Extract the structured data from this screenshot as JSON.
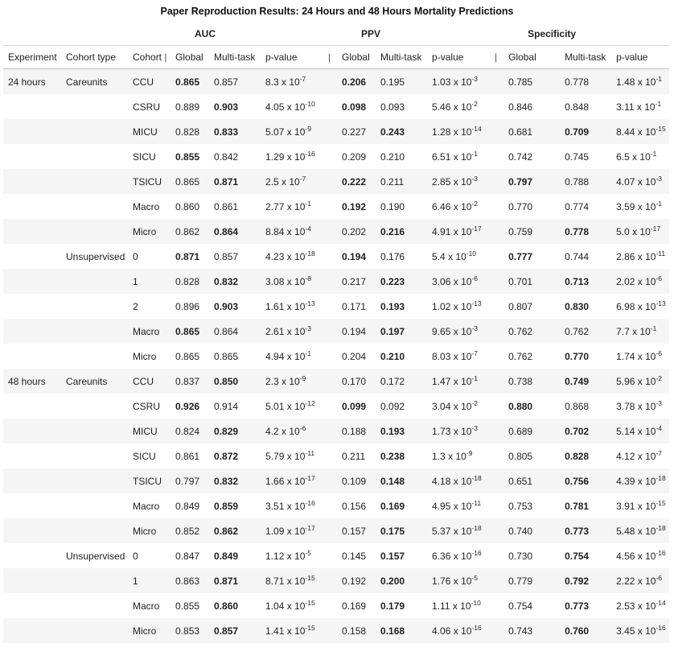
{
  "caption": "Paper Reproduction Results: 24 Hours and 48 Hours Mortality Predictions",
  "groups": [
    "AUC",
    "PPV",
    "Specificity"
  ],
  "columns": {
    "experiment": "Experiment",
    "cohort_type": "Cohort type",
    "cohort": "Cohort",
    "sep": "|",
    "global": "Global",
    "multitask": "Multi-task",
    "pvalue": "p-value"
  },
  "rows": [
    {
      "exp": "24 hours",
      "ctype": "Careunits",
      "cohort": "CCU",
      "auc": {
        "g": "0.865",
        "m": "0.857",
        "p": [
          "8.3",
          "-7"
        ],
        "best": "g"
      },
      "ppv": {
        "g": "0.206",
        "m": "0.195",
        "p": [
          "1.03",
          "-3"
        ],
        "best": "g"
      },
      "spec": {
        "g": "0.785",
        "m": "0.778",
        "p": [
          "1.48",
          "-1"
        ],
        "best": ""
      }
    },
    {
      "exp": "",
      "ctype": "",
      "cohort": "CSRU",
      "auc": {
        "g": "0.889",
        "m": "0.903",
        "p": [
          "4.05",
          "-10"
        ],
        "best": "m"
      },
      "ppv": {
        "g": "0.098",
        "m": "0.093",
        "p": [
          "5.46",
          "-2"
        ],
        "best": "g"
      },
      "spec": {
        "g": "0.846",
        "m": "0.848",
        "p": [
          "3.11",
          "-1"
        ],
        "best": ""
      }
    },
    {
      "exp": "",
      "ctype": "",
      "cohort": "MICU",
      "auc": {
        "g": "0.828",
        "m": "0.833",
        "p": [
          "5.07",
          "-9"
        ],
        "best": "m"
      },
      "ppv": {
        "g": "0.227",
        "m": "0.243",
        "p": [
          "1.28",
          "-14"
        ],
        "best": "m"
      },
      "spec": {
        "g": "0.681",
        "m": "0.709",
        "p": [
          "8.44",
          "-15"
        ],
        "best": "m"
      }
    },
    {
      "exp": "",
      "ctype": "",
      "cohort": "SICU",
      "auc": {
        "g": "0.855",
        "m": "0.842",
        "p": [
          "1.29",
          "-16"
        ],
        "best": "g"
      },
      "ppv": {
        "g": "0.209",
        "m": "0.210",
        "p": [
          "6.51",
          "-1"
        ],
        "best": ""
      },
      "spec": {
        "g": "0.742",
        "m": "0.745",
        "p": [
          "6.5",
          "-1"
        ],
        "best": ""
      }
    },
    {
      "exp": "",
      "ctype": "",
      "cohort": "TSICU",
      "auc": {
        "g": "0.865",
        "m": "0.871",
        "p": [
          "2.5",
          "-7"
        ],
        "best": "m"
      },
      "ppv": {
        "g": "0.222",
        "m": "0.211",
        "p": [
          "2.85",
          "-3"
        ],
        "best": "g"
      },
      "spec": {
        "g": "0.797",
        "m": "0.788",
        "p": [
          "4.07",
          "-3"
        ],
        "best": "g"
      }
    },
    {
      "exp": "",
      "ctype": "",
      "cohort": "Macro",
      "auc": {
        "g": "0.860",
        "m": "0.861",
        "p": [
          "2.77",
          "-1"
        ],
        "best": ""
      },
      "ppv": {
        "g": "0.192",
        "m": "0.190",
        "p": [
          "6.46",
          "-2"
        ],
        "best": "g"
      },
      "spec": {
        "g": "0.770",
        "m": "0.774",
        "p": [
          "3.59",
          "-1"
        ],
        "best": ""
      }
    },
    {
      "exp": "",
      "ctype": "",
      "cohort": "Micro",
      "auc": {
        "g": "0.862",
        "m": "0.864",
        "p": [
          "8.84",
          "-4"
        ],
        "best": "m"
      },
      "ppv": {
        "g": "0.202",
        "m": "0.216",
        "p": [
          "4.91",
          "-17"
        ],
        "best": "m"
      },
      "spec": {
        "g": "0.759",
        "m": "0.778",
        "p": [
          "5.0",
          "-17"
        ],
        "best": "m"
      }
    },
    {
      "exp": "",
      "ctype": "Unsupervised",
      "cohort": "0",
      "auc": {
        "g": "0.871",
        "m": "0.857",
        "p": [
          "4.23",
          "-18"
        ],
        "best": "g"
      },
      "ppv": {
        "g": "0.194",
        "m": "0.176",
        "p": [
          "5.4",
          "-10"
        ],
        "best": "g"
      },
      "spec": {
        "g": "0.777",
        "m": "0.744",
        "p": [
          "2.86",
          "-11"
        ],
        "best": "g"
      }
    },
    {
      "exp": "",
      "ctype": "",
      "cohort": "1",
      "auc": {
        "g": "0.828",
        "m": "0.832",
        "p": [
          "3.08",
          "-8"
        ],
        "best": "m"
      },
      "ppv": {
        "g": "0.217",
        "m": "0.223",
        "p": [
          "3.06",
          "-6"
        ],
        "best": "m"
      },
      "spec": {
        "g": "0.701",
        "m": "0.713",
        "p": [
          "2.02",
          "-6"
        ],
        "best": "m"
      }
    },
    {
      "exp": "",
      "ctype": "",
      "cohort": "2",
      "auc": {
        "g": "0.896",
        "m": "0.903",
        "p": [
          "1.61",
          "-13"
        ],
        "best": "m"
      },
      "ppv": {
        "g": "0.171",
        "m": "0.193",
        "p": [
          "1.02",
          "-13"
        ],
        "best": "m"
      },
      "spec": {
        "g": "0.807",
        "m": "0.830",
        "p": [
          "6.98",
          "-13"
        ],
        "best": "m"
      }
    },
    {
      "exp": "",
      "ctype": "",
      "cohort": "Macro",
      "auc": {
        "g": "0.865",
        "m": "0.864",
        "p": [
          "2.61",
          "-3"
        ],
        "best": "g"
      },
      "ppv": {
        "g": "0.194",
        "m": "0.197",
        "p": [
          "9.65",
          "-3"
        ],
        "best": "m"
      },
      "spec": {
        "g": "0.762",
        "m": "0.762",
        "p": [
          "7.7",
          "-1"
        ],
        "best": ""
      }
    },
    {
      "exp": "",
      "ctype": "",
      "cohort": "Micro",
      "auc": {
        "g": "0.865",
        "m": "0.865",
        "p": [
          "4.94",
          "-1"
        ],
        "best": ""
      },
      "ppv": {
        "g": "0.204",
        "m": "0.210",
        "p": [
          "8.03",
          "-7"
        ],
        "best": "m"
      },
      "spec": {
        "g": "0.762",
        "m": "0.770",
        "p": [
          "1.74",
          "-6"
        ],
        "best": "m"
      }
    },
    {
      "exp": "48 hours",
      "ctype": "Careunits",
      "cohort": "CCU",
      "auc": {
        "g": "0.837",
        "m": "0.850",
        "p": [
          "2.3",
          "-9"
        ],
        "best": "m"
      },
      "ppv": {
        "g": "0.170",
        "m": "0.172",
        "p": [
          "1.47",
          "-1"
        ],
        "best": ""
      },
      "spec": {
        "g": "0.738",
        "m": "0.749",
        "p": [
          "5.96",
          "-2"
        ],
        "best": "m"
      }
    },
    {
      "exp": "",
      "ctype": "",
      "cohort": "CSRU",
      "auc": {
        "g": "0.926",
        "m": "0.914",
        "p": [
          "5.01",
          "-12"
        ],
        "best": "g"
      },
      "ppv": {
        "g": "0.099",
        "m": "0.092",
        "p": [
          "3.04",
          "-2"
        ],
        "best": "g"
      },
      "spec": {
        "g": "0.880",
        "m": "0.868",
        "p": [
          "3.78",
          "-3"
        ],
        "best": "g"
      }
    },
    {
      "exp": "",
      "ctype": "",
      "cohort": "MICU",
      "auc": {
        "g": "0.824",
        "m": "0.829",
        "p": [
          "4.2",
          "-6"
        ],
        "best": "m"
      },
      "ppv": {
        "g": "0.188",
        "m": "0.193",
        "p": [
          "1.73",
          "-3"
        ],
        "best": "m"
      },
      "spec": {
        "g": "0.689",
        "m": "0.702",
        "p": [
          "5.14",
          "-4"
        ],
        "best": "m"
      }
    },
    {
      "exp": "",
      "ctype": "",
      "cohort": "SICU",
      "auc": {
        "g": "0.861",
        "m": "0.872",
        "p": [
          "5.79",
          "-11"
        ],
        "best": "m"
      },
      "ppv": {
        "g": "0.211",
        "m": "0.238",
        "p": [
          "1.3",
          "-9"
        ],
        "best": "m"
      },
      "spec": {
        "g": "0.805",
        "m": "0.828",
        "p": [
          "4.12",
          "-7"
        ],
        "best": "m"
      }
    },
    {
      "exp": "",
      "ctype": "",
      "cohort": "TSICU",
      "auc": {
        "g": "0.797",
        "m": "0.832",
        "p": [
          "1.66",
          "-17"
        ],
        "best": "m"
      },
      "ppv": {
        "g": "0.109",
        "m": "0.148",
        "p": [
          "4.18",
          "-18"
        ],
        "best": "m"
      },
      "spec": {
        "g": "0.651",
        "m": "0.756",
        "p": [
          "4.39",
          "-18"
        ],
        "best": "m"
      }
    },
    {
      "exp": "",
      "ctype": "",
      "cohort": "Macro",
      "auc": {
        "g": "0.849",
        "m": "0.859",
        "p": [
          "3.51",
          "-16"
        ],
        "best": "m"
      },
      "ppv": {
        "g": "0.156",
        "m": "0.169",
        "p": [
          "4.95",
          "-11"
        ],
        "best": "m"
      },
      "spec": {
        "g": "0.753",
        "m": "0.781",
        "p": [
          "3.91",
          "-15"
        ],
        "best": "m"
      }
    },
    {
      "exp": "",
      "ctype": "",
      "cohort": "Micro",
      "auc": {
        "g": "0.852",
        "m": "0.862",
        "p": [
          "1.09",
          "-17"
        ],
        "best": "m"
      },
      "ppv": {
        "g": "0.157",
        "m": "0.175",
        "p": [
          "5.37",
          "-18"
        ],
        "best": "m"
      },
      "spec": {
        "g": "0.740",
        "m": "0.773",
        "p": [
          "5.48",
          "-18"
        ],
        "best": "m"
      }
    },
    {
      "exp": "",
      "ctype": "Unsupervised",
      "cohort": "0",
      "auc": {
        "g": "0.847",
        "m": "0.849",
        "p": [
          "1.12",
          "-5"
        ],
        "best": "m"
      },
      "ppv": {
        "g": "0.145",
        "m": "0.157",
        "p": [
          "6.36",
          "-16"
        ],
        "best": "m"
      },
      "spec": {
        "g": "0.730",
        "m": "0.754",
        "p": [
          "4.56",
          "-16"
        ],
        "best": "m"
      }
    },
    {
      "exp": "",
      "ctype": "",
      "cohort": "1",
      "auc": {
        "g": "0.863",
        "m": "0.871",
        "p": [
          "8.71",
          "-15"
        ],
        "best": "m"
      },
      "ppv": {
        "g": "0.192",
        "m": "0.200",
        "p": [
          "1.76",
          "-5"
        ],
        "best": "m"
      },
      "spec": {
        "g": "0.779",
        "m": "0.792",
        "p": [
          "2.22",
          "-6"
        ],
        "best": "m"
      }
    },
    {
      "exp": "",
      "ctype": "",
      "cohort": "Macro",
      "auc": {
        "g": "0.855",
        "m": "0.860",
        "p": [
          "1.04",
          "-15"
        ],
        "best": "m"
      },
      "ppv": {
        "g": "0.169",
        "m": "0.179",
        "p": [
          "1.11",
          "-10"
        ],
        "best": "m"
      },
      "spec": {
        "g": "0.754",
        "m": "0.773",
        "p": [
          "2.53",
          "-14"
        ],
        "best": "m"
      }
    },
    {
      "exp": "",
      "ctype": "",
      "cohort": "Micro",
      "auc": {
        "g": "0.853",
        "m": "0.857",
        "p": [
          "1.41",
          "-15"
        ],
        "best": "m"
      },
      "ppv": {
        "g": "0.158",
        "m": "0.168",
        "p": [
          "4.06",
          "-16"
        ],
        "best": "m"
      },
      "spec": {
        "g": "0.743",
        "m": "0.760",
        "p": [
          "3.45",
          "-16"
        ],
        "best": "m"
      }
    }
  ]
}
